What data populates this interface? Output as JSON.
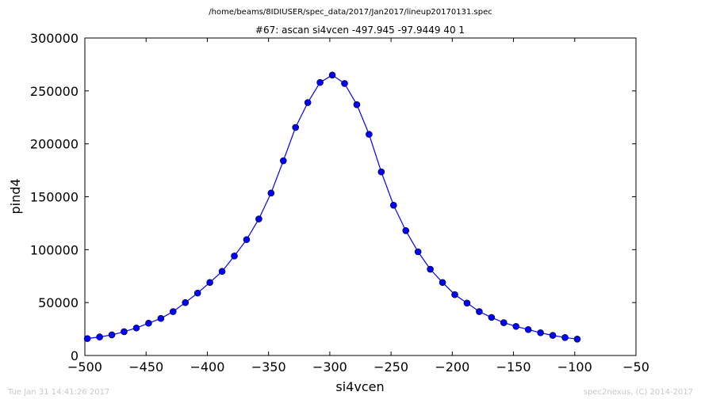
{
  "chart_data": {
    "type": "line",
    "supertitle": "/home/beams/8IDIUSER/spec_data/2017/Jan2017/lineup20170131.spec",
    "title": "#67: ascan  si4vcen -497.945 -97.9449  40 1",
    "xlabel": "si4vcen",
    "ylabel": "pind4",
    "xlim": [
      -500,
      -50
    ],
    "ylim": [
      0,
      300000
    ],
    "xticks": [
      -500,
      -450,
      -400,
      -350,
      -300,
      -250,
      -200,
      -150,
      -100,
      -50
    ],
    "yticks": [
      0,
      50000,
      100000,
      150000,
      200000,
      250000,
      300000
    ],
    "grid": false,
    "marker": "circle",
    "color": "#0000ff",
    "series": [
      {
        "x": [
          -497.945,
          -487.945,
          -477.945,
          -467.945,
          -457.945,
          -447.945,
          -437.945,
          -427.945,
          -417.945,
          -407.945,
          -397.945,
          -387.945,
          -377.945,
          -367.945,
          -357.945,
          -347.945,
          -337.945,
          -327.945,
          -317.945,
          -307.945,
          -297.945,
          -287.945,
          -277.945,
          -267.945,
          -257.945,
          -247.945,
          -237.945,
          -227.945,
          -217.945,
          -207.945,
          -197.945,
          -187.945,
          -177.945,
          -167.945,
          -157.945,
          -147.945,
          -137.945,
          -127.945,
          -117.945,
          -107.945,
          -97.945
        ],
        "y": [
          16000,
          17500,
          19500,
          22500,
          26000,
          30500,
          35000,
          41500,
          50000,
          59000,
          69000,
          79500,
          94000,
          109500,
          129000,
          153500,
          184000,
          215500,
          239000,
          258000,
          265000,
          257000,
          237000,
          209000,
          173500,
          142000,
          118000,
          98000,
          81500,
          69000,
          57500,
          49500,
          41500,
          36000,
          31000,
          27500,
          24500,
          21500,
          19000,
          17000,
          15500
        ]
      }
    ]
  },
  "footer": {
    "left": "Tue Jan 31 14:41:26 2017",
    "right": "spec2nexus, (C) 2014-2017"
  }
}
